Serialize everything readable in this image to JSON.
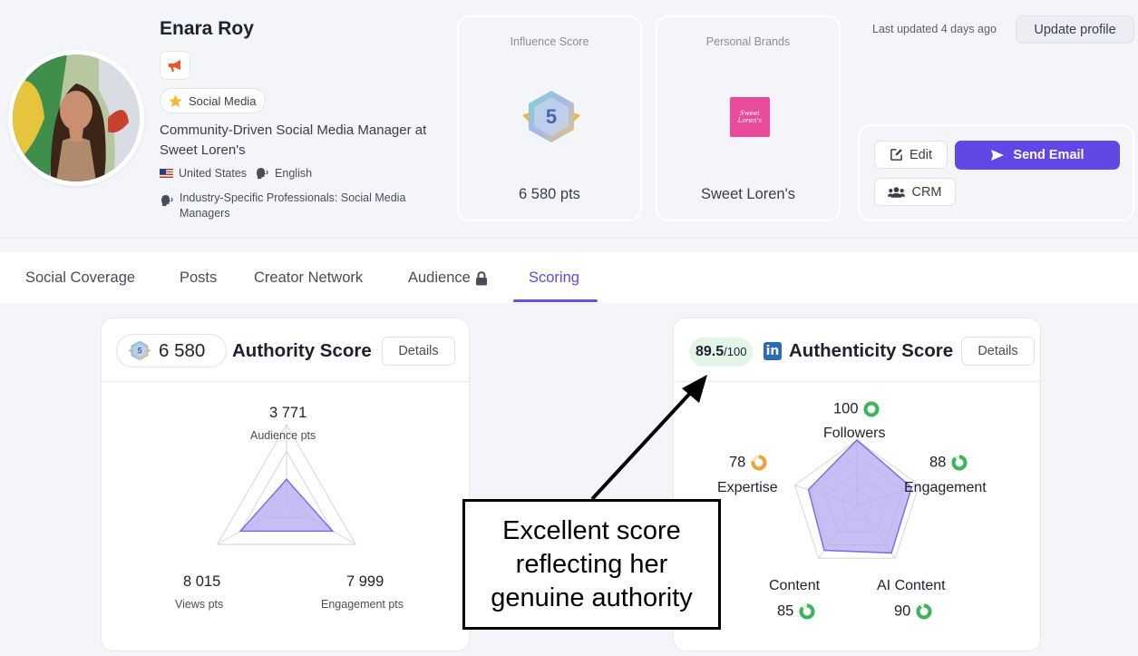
{
  "profile": {
    "name": "Enara Roy",
    "category": "Social Media",
    "headline": "Community-Driven Social Media Manager at Sweet Loren's",
    "country": "United States",
    "language": "English",
    "segment": "Industry-Specific Professionals: Social Media Managers"
  },
  "influence": {
    "label": "Influence Score",
    "level": "5",
    "points": "6 580 pts"
  },
  "brands": {
    "label": "Personal Brands",
    "logo_text": "Sweet Loren's",
    "name": "Sweet Loren's"
  },
  "header_actions": {
    "last_updated": "Last updated 4 days ago",
    "update_profile": "Update profile",
    "edit": "Edit",
    "send_email": "Send Email",
    "crm": "CRM"
  },
  "tabs": [
    {
      "label": "Social Coverage"
    },
    {
      "label": "Posts"
    },
    {
      "label": "Creator Network"
    },
    {
      "label": "Audience"
    },
    {
      "label": "Scoring"
    }
  ],
  "active_tab": "Scoring",
  "authority": {
    "badge_level": "5",
    "score": "6 580",
    "title": "Authority Score",
    "details": "Details",
    "axes": [
      {
        "value": "3 771",
        "label": "Audience pts"
      },
      {
        "value": "8 015",
        "label": "Views pts"
      },
      {
        "value": "7 999",
        "label": "Engagement pts"
      }
    ]
  },
  "authenticity": {
    "score": "89.5",
    "max": "/100",
    "network_icon": "linkedin-icon",
    "network_letter": "in",
    "title": "Authenticity Score",
    "details": "Details",
    "axes": [
      {
        "label": "Followers",
        "value": "100"
      },
      {
        "label": "Engagement",
        "value": "88"
      },
      {
        "label": "AI Content",
        "value": "90"
      },
      {
        "label": "Content",
        "value": "85"
      },
      {
        "label": "Expertise",
        "value": "78"
      }
    ]
  },
  "chart_data": [
    {
      "type": "radar",
      "title": "Authority Score",
      "axes": [
        "Audience pts",
        "Engagement pts",
        "Views pts"
      ],
      "values": [
        3771,
        7999,
        8015
      ],
      "max": 12000
    },
    {
      "type": "radar",
      "title": "Authenticity Score",
      "axes": [
        "Followers",
        "Engagement",
        "AI Content",
        "Content",
        "Expertise"
      ],
      "values": [
        100,
        88,
        90,
        85,
        78
      ],
      "max": 100
    }
  ],
  "annotation": {
    "lines": [
      "Excellent score",
      "reflecting her",
      "genuine authority"
    ]
  },
  "colors": {
    "accent": "#6047e6",
    "radar_fill": "#b3aaf0",
    "ring_green": "#3cb55a",
    "ring_orange": "#f0a13a",
    "pill_green": "#e3f5e6"
  }
}
